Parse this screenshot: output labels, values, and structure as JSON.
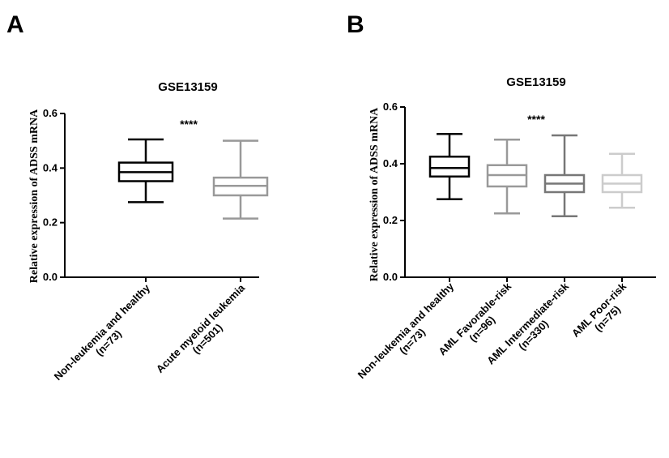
{
  "chart_data": [
    {
      "type": "boxplot",
      "panel": "A",
      "title": "GSE13159",
      "ylabel": "Relative expression of ADSS mRNA",
      "xlabel": "",
      "ylim": [
        0,
        0.6
      ],
      "yticks": [
        "0.0",
        "0.2",
        "0.4",
        "0.6"
      ],
      "significance": "****",
      "categories": [
        {
          "line1": "Non-leukemia and healthy",
          "line2": "(n=73)"
        },
        {
          "line1": "Acute myeloid leukemia",
          "line2": "(n=501)"
        }
      ],
      "boxes": [
        {
          "min": 0.275,
          "q1": 0.352,
          "median": 0.385,
          "q3": 0.42,
          "max": 0.505,
          "color": "#000000"
        },
        {
          "min": 0.215,
          "q1": 0.3,
          "median": 0.335,
          "q3": 0.365,
          "max": 0.5,
          "color": "#999999"
        }
      ]
    },
    {
      "type": "boxplot",
      "panel": "B",
      "title": "GSE13159",
      "ylabel": "Relative expression of ADSS mRNA",
      "xlabel": "",
      "ylim": [
        0,
        0.6
      ],
      "yticks": [
        "0.0",
        "0.2",
        "0.4",
        "0.6"
      ],
      "significance": "****",
      "categories": [
        {
          "line1": "Non-leukemia and healthy",
          "line2": "(n=73)"
        },
        {
          "line1": "AML Favorable-risk",
          "line2": "(n=96)"
        },
        {
          "line1": "AML Intermediate-risk",
          "line2": "(n=330)"
        },
        {
          "line1": "AML Poor-risk",
          "line2": "(n=75)"
        }
      ],
      "boxes": [
        {
          "min": 0.275,
          "q1": 0.355,
          "median": 0.385,
          "q3": 0.425,
          "max": 0.505,
          "color": "#000000"
        },
        {
          "min": 0.225,
          "q1": 0.32,
          "median": 0.36,
          "q3": 0.395,
          "max": 0.485,
          "color": "#999999"
        },
        {
          "min": 0.215,
          "q1": 0.3,
          "median": 0.33,
          "q3": 0.36,
          "max": 0.5,
          "color": "#777777"
        },
        {
          "min": 0.245,
          "q1": 0.3,
          "median": 0.33,
          "q3": 0.36,
          "max": 0.435,
          "color": "#cccccc"
        }
      ]
    }
  ]
}
